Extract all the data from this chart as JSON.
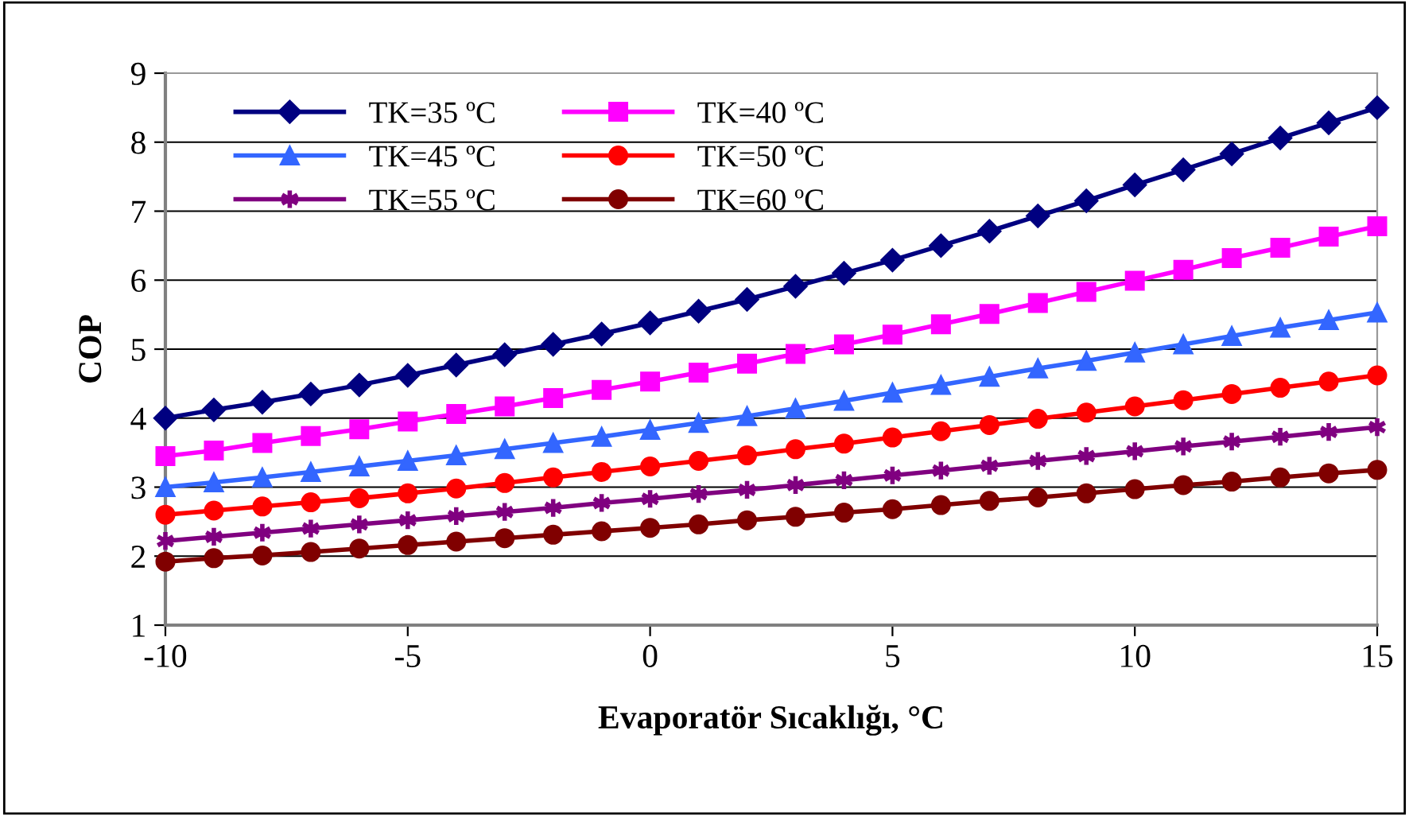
{
  "chart_data": {
    "type": "line",
    "xlabel": "Evaporatör Sıcaklığı, °C",
    "ylabel": "COP",
    "x": [
      -10,
      -9,
      -8,
      -7,
      -6,
      -5,
      -4,
      -3,
      -2,
      -1,
      0,
      1,
      2,
      3,
      4,
      5,
      6,
      7,
      8,
      9,
      10,
      11,
      12,
      13,
      14,
      15
    ],
    "series": [
      {
        "name": "TK=35 ºC",
        "color": "#000080",
        "marker": "diamond",
        "values": [
          4.0,
          4.12,
          4.23,
          4.35,
          4.48,
          4.62,
          4.77,
          4.92,
          5.07,
          5.22,
          5.38,
          5.55,
          5.72,
          5.91,
          6.1,
          6.29,
          6.5,
          6.71,
          6.93,
          7.15,
          7.38,
          7.6,
          7.83,
          8.06,
          8.28,
          8.5
        ]
      },
      {
        "name": "TK=40 ºC",
        "color": "#ff00ff",
        "marker": "square",
        "values": [
          3.45,
          3.53,
          3.64,
          3.74,
          3.84,
          3.95,
          4.06,
          4.17,
          4.29,
          4.41,
          4.53,
          4.66,
          4.79,
          4.93,
          5.07,
          5.21,
          5.36,
          5.51,
          5.67,
          5.83,
          5.99,
          6.15,
          6.32,
          6.47,
          6.63,
          6.78
        ]
      },
      {
        "name": "TK=45 ºC",
        "color": "#3366ff",
        "marker": "triangle",
        "values": [
          3.0,
          3.07,
          3.14,
          3.22,
          3.3,
          3.38,
          3.46,
          3.55,
          3.64,
          3.73,
          3.83,
          3.93,
          4.03,
          4.14,
          4.25,
          4.37,
          4.48,
          4.6,
          4.72,
          4.83,
          4.95,
          5.07,
          5.19,
          5.31,
          5.42,
          5.53
        ]
      },
      {
        "name": "TK=50 ºC",
        "color": "#ff0000",
        "marker": "circle",
        "values": [
          2.6,
          2.66,
          2.72,
          2.78,
          2.84,
          2.91,
          2.98,
          3.06,
          3.14,
          3.22,
          3.3,
          3.38,
          3.46,
          3.55,
          3.63,
          3.72,
          3.81,
          3.9,
          3.99,
          4.08,
          4.17,
          4.26,
          4.35,
          4.44,
          4.53,
          4.62
        ]
      },
      {
        "name": "TK=55 ºC",
        "color": "#800080",
        "marker": "cross",
        "values": [
          2.22,
          2.28,
          2.34,
          2.4,
          2.46,
          2.52,
          2.58,
          2.64,
          2.7,
          2.77,
          2.83,
          2.9,
          2.96,
          3.03,
          3.1,
          3.17,
          3.24,
          3.31,
          3.38,
          3.45,
          3.52,
          3.59,
          3.66,
          3.73,
          3.8,
          3.87
        ]
      },
      {
        "name": "TK=60 ºC",
        "color": "#800000",
        "marker": "circle",
        "values": [
          1.92,
          1.97,
          2.01,
          2.06,
          2.11,
          2.16,
          2.21,
          2.26,
          2.31,
          2.36,
          2.41,
          2.46,
          2.52,
          2.57,
          2.63,
          2.68,
          2.74,
          2.8,
          2.85,
          2.91,
          2.97,
          3.03,
          3.08,
          3.14,
          3.2,
          3.25
        ]
      }
    ],
    "xlim": [
      -10,
      15
    ],
    "xticks": [
      -10,
      -5,
      0,
      5,
      10,
      15
    ],
    "ylim": [
      1,
      9
    ],
    "yticks": [
      1,
      2,
      3,
      4,
      5,
      6,
      7,
      8,
      9
    ],
    "grid": "y",
    "legend": "top left",
    "line_style": "solid"
  }
}
